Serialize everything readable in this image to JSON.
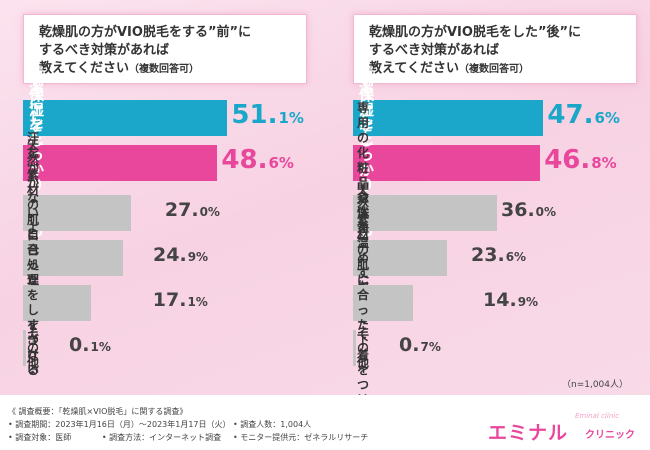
{
  "chart_data": [
    {
      "type": "bar",
      "title_lines": [
        "乾燥肌の方がVIO脱毛をする”前”に",
        "するべき対策があれば",
        "教えてください"
      ],
      "subtitle": "（複数回答可）",
      "categories": [
        "清潔にしておく",
        "保湿をしっかりとする",
        "汗をかかないようにする",
        "天然素材の肌に合った\n下着をつける",
        "自己処理をしすぎない",
        "その他"
      ],
      "values": [
        51.1,
        48.6,
        27.0,
        24.9,
        17.1,
        0.1
      ],
      "value_labels": [
        [
          "51.",
          "1%"
        ],
        [
          "48.",
          "6%"
        ],
        [
          "27.",
          "0%"
        ],
        [
          "24.",
          "9%"
        ],
        [
          "17.",
          "1%"
        ],
        [
          "0.",
          "1%"
        ]
      ],
      "colors": [
        "#1aa7c9",
        "#e8479c",
        "#c4c4c4",
        "#c4c4c4",
        "#c4c4c4",
        "#c4c4c4"
      ],
      "xlim": [
        0,
        100
      ]
    },
    {
      "type": "bar",
      "title_lines": [
        "乾燥肌の方がVIO脱毛をした”後”に",
        "するべき対策があれば",
        "教えてください"
      ],
      "subtitle": "（複数回答可）",
      "categories": [
        "清潔にしておく",
        "保湿をしっかりとする",
        "専用の化粧品や洗浄剤を\n使用する",
        "身体を温めすぎない",
        "天然素材の肌に合った\n下着をつける",
        "その他"
      ],
      "values": [
        47.6,
        46.8,
        36.0,
        23.6,
        14.9,
        0.7
      ],
      "value_labels": [
        [
          "47.",
          "6%"
        ],
        [
          "46.",
          "8%"
        ],
        [
          "36.",
          "0%"
        ],
        [
          "23.",
          "6%"
        ],
        [
          "14.",
          "9%"
        ],
        [
          "0.",
          "7%"
        ]
      ],
      "colors": [
        "#1aa7c9",
        "#e8479c",
        "#c4c4c4",
        "#c4c4c4",
        "#c4c4c4",
        "#c4c4c4"
      ],
      "xlim": [
        0,
        100
      ]
    }
  ],
  "sample_note": "（n=1,004人）",
  "survey": {
    "heading": "《 調査概要：「乾燥肌×VIO脱毛」に関する調査》",
    "period": "• 調査期間：2023年1月16日（月）～2023年1月17日（火）",
    "people": "• 調査人数：1,004人",
    "target": "• 調査対象：医師",
    "method": "• 調査方法：インターネット調査",
    "provider": "• モニター提供元：ゼネラルリサーチ"
  },
  "logo": {
    "main": "エミナル",
    "sub": "クリニック",
    "small": "Eminal clinic"
  }
}
